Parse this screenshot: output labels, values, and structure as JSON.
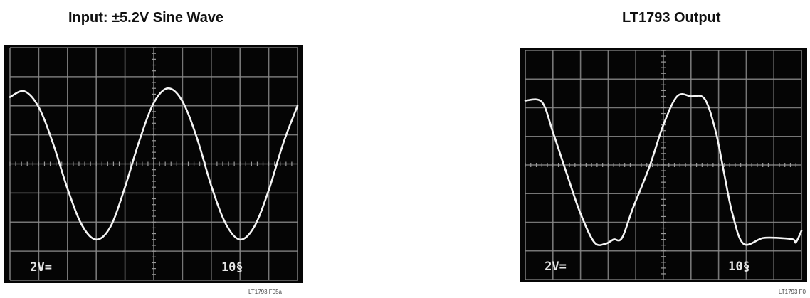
{
  "chart_data": [
    {
      "type": "line",
      "title": "Input: ±5.2V Sine Wave",
      "volts_per_div": "2V=",
      "time_per_div": "10§",
      "figure_id": "LT1793 F05a",
      "grid": true,
      "divisions": {
        "x": 10,
        "y": 8
      },
      "ylim": [
        -8,
        8
      ],
      "series": [
        {
          "x": [
            0.0,
            0.5,
            1.0,
            1.5,
            2.0,
            2.5,
            3.0,
            3.5,
            4.0,
            4.5,
            5.0,
            5.5,
            6.0,
            6.5,
            7.0,
            7.5,
            8.0,
            8.5,
            9.0,
            9.5,
            10.0
          ],
          "values": [
            4.6,
            5.0,
            3.9,
            1.4,
            -1.7,
            -4.2,
            -5.2,
            -4.3,
            -1.6,
            1.6,
            4.2,
            5.2,
            4.3,
            1.8,
            -1.5,
            -4.1,
            -5.2,
            -4.3,
            -1.8,
            1.4,
            4.0
          ]
        }
      ]
    },
    {
      "type": "line",
      "title": "LT1793 Output",
      "volts_per_div": "2V=",
      "time_per_div": "10§",
      "figure_id": "LT1793 F0",
      "grid": true,
      "divisions": {
        "x": 10,
        "y": 8
      },
      "ylim": [
        -8,
        8
      ],
      "series": [
        {
          "x": [
            0.0,
            0.6,
            1.0,
            1.5,
            2.0,
            2.5,
            2.9,
            3.2,
            3.5,
            3.9,
            4.5,
            5.0,
            5.5,
            6.0,
            6.5,
            6.9,
            7.2,
            7.5,
            7.9,
            8.6,
            9.2,
            9.7,
            9.8,
            10.0
          ],
          "values": [
            4.5,
            4.4,
            2.3,
            -0.6,
            -3.4,
            -5.4,
            -5.5,
            -5.2,
            -5.1,
            -3.0,
            -0.1,
            2.8,
            4.8,
            4.8,
            4.6,
            2.3,
            -0.6,
            -3.4,
            -5.5,
            -5.1,
            -5.1,
            -5.2,
            -5.4,
            -4.6
          ]
        }
      ]
    }
  ]
}
